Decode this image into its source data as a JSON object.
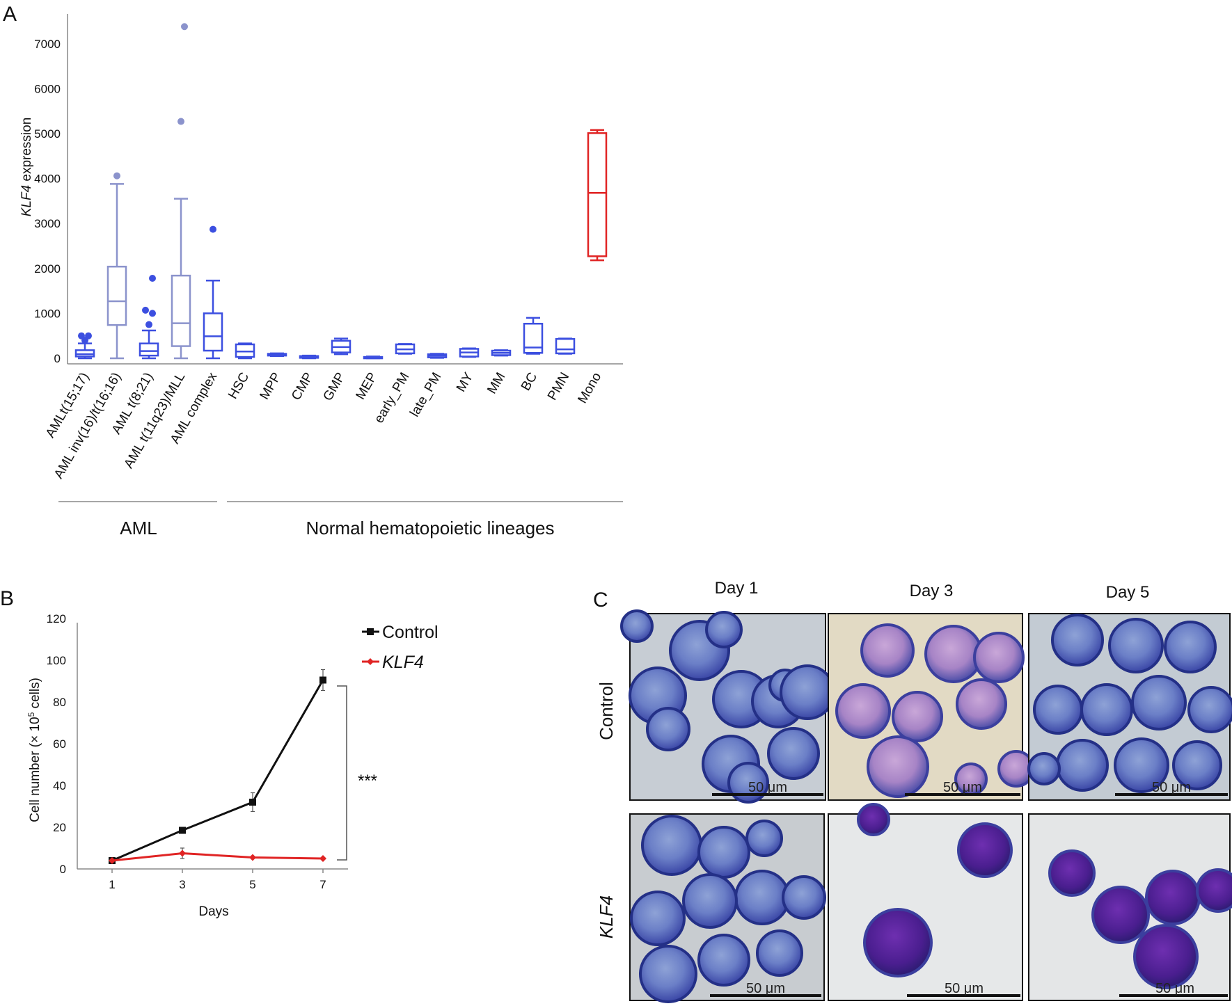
{
  "panel_labels": {
    "a": "A",
    "b": "B",
    "c": "C"
  },
  "colors": {
    "aml_light": "#8b93cc",
    "blue": "#3c4fe0",
    "red": "#e02424",
    "axis": "#888888",
    "black": "#111111",
    "scale_bar": "#111111"
  },
  "chart_data": [
    {
      "id": "panel_a",
      "type": "box",
      "title": "",
      "ylabel_italic": "KLF4",
      "ylabel_rest": " expression",
      "xlabel": "",
      "ylim": [
        0,
        7600
      ],
      "yticks": [
        0,
        1000,
        2000,
        3000,
        4000,
        5000,
        6000,
        7000
      ],
      "ytick_labels": [
        "0",
        "1000",
        "2000",
        "3000",
        "4000",
        "5000",
        "6000",
        "7000"
      ],
      "categories": [
        "AMLt(15;17)",
        "AML inv(16)/t(16;16)",
        "AML t(8;21)",
        "AML t(11q23)/MLL",
        "AML complex",
        "HSC",
        "MPP",
        "CMP",
        "GMP",
        "MEP",
        "early_PM",
        "late_PM",
        "MY",
        "MM",
        "BC",
        "PMN",
        "Mono"
      ],
      "boxes": [
        {
          "min": 0,
          "q1": 40,
          "median": 90,
          "q3": 180,
          "max": 330,
          "outliers": [
            400,
            500,
            500
          ],
          "color": "blue"
        },
        {
          "min": 0,
          "q1": 740,
          "median": 1270,
          "q3": 2040,
          "max": 3880,
          "outliers": [
            4060
          ],
          "color": "aml_light"
        },
        {
          "min": 0,
          "q1": 60,
          "median": 160,
          "q3": 330,
          "max": 620,
          "outliers": [
            750,
            1000,
            1070,
            1780
          ],
          "color": "blue"
        },
        {
          "min": 0,
          "q1": 270,
          "median": 780,
          "q3": 1840,
          "max": 3550,
          "outliers": [
            5270,
            7380
          ],
          "color": "aml_light"
        },
        {
          "min": 0,
          "q1": 170,
          "median": 490,
          "q3": 1000,
          "max": 1730,
          "outliers": [
            2870
          ],
          "color": "blue"
        },
        {
          "min": 0,
          "q1": 30,
          "median": 150,
          "q3": 310,
          "max": 330,
          "outliers": [],
          "color": "blue"
        },
        {
          "min": 50,
          "q1": 60,
          "median": 80,
          "q3": 100,
          "max": 110,
          "outliers": [],
          "color": "blue"
        },
        {
          "min": 0,
          "q1": 10,
          "median": 30,
          "q3": 50,
          "max": 60,
          "outliers": [],
          "color": "blue"
        },
        {
          "min": 90,
          "q1": 130,
          "median": 250,
          "q3": 390,
          "max": 440,
          "outliers": [],
          "color": "blue"
        },
        {
          "min": 0,
          "q1": 5,
          "median": 20,
          "q3": 30,
          "max": 40,
          "outliers": [],
          "color": "blue"
        },
        {
          "min": 100,
          "q1": 110,
          "median": 200,
          "q3": 310,
          "max": 320,
          "outliers": [],
          "color": "blue"
        },
        {
          "min": 10,
          "q1": 20,
          "median": 60,
          "q3": 90,
          "max": 100,
          "outliers": [],
          "color": "blue"
        },
        {
          "min": 30,
          "q1": 40,
          "median": 130,
          "q3": 210,
          "max": 220,
          "outliers": [],
          "color": "blue"
        },
        {
          "min": 60,
          "q1": 70,
          "median": 120,
          "q3": 170,
          "max": 180,
          "outliers": [],
          "color": "blue"
        },
        {
          "min": 100,
          "q1": 120,
          "median": 240,
          "q3": 770,
          "max": 900,
          "outliers": [],
          "color": "blue"
        },
        {
          "min": 100,
          "q1": 110,
          "median": 200,
          "q3": 430,
          "max": 440,
          "outliers": [],
          "color": "blue"
        },
        {
          "min": 2180,
          "q1": 2270,
          "median": 3680,
          "q3": 5010,
          "max": 5080,
          "outliers": [],
          "color": "red"
        }
      ],
      "groups": [
        {
          "label": "AML",
          "first": 0,
          "last": 4
        },
        {
          "label": "Normal hematopoietic lineages",
          "first": 5,
          "last": 16
        }
      ]
    },
    {
      "id": "panel_b",
      "type": "line",
      "xlabel": "Days",
      "ylabel_main": "Cell number (× 10",
      "ylabel_sup": "5",
      "ylabel_end": " cells)",
      "x": [
        1,
        3,
        5,
        7
      ],
      "xtick_labels": [
        "1",
        "3",
        "5",
        "7"
      ],
      "ylim": [
        0,
        120
      ],
      "yticks": [
        0,
        20,
        40,
        60,
        80,
        100,
        120
      ],
      "ytick_labels": [
        "0",
        "20",
        "40",
        "60",
        "80",
        "100",
        "120"
      ],
      "series": [
        {
          "name": "Control",
          "italic": false,
          "values": [
            4,
            18.5,
            32,
            90.5
          ],
          "errors": [
            0.5,
            1,
            4.5,
            5
          ],
          "color": "black",
          "marker": "square"
        },
        {
          "name": "KLF4",
          "italic": true,
          "values": [
            4,
            7.5,
            5.5,
            5
          ],
          "errors": [
            0.5,
            2.5,
            0.5,
            0.5
          ],
          "color": "red",
          "marker": "diamond"
        }
      ],
      "significance": "***"
    }
  ],
  "panel_c": {
    "columns": [
      "Day 1",
      "Day 3",
      "Day 5"
    ],
    "rows": [
      {
        "label": "Control",
        "italic": false
      },
      {
        "label": "KLF4",
        "italic": true
      }
    ],
    "scale_bar": "50 μm"
  }
}
